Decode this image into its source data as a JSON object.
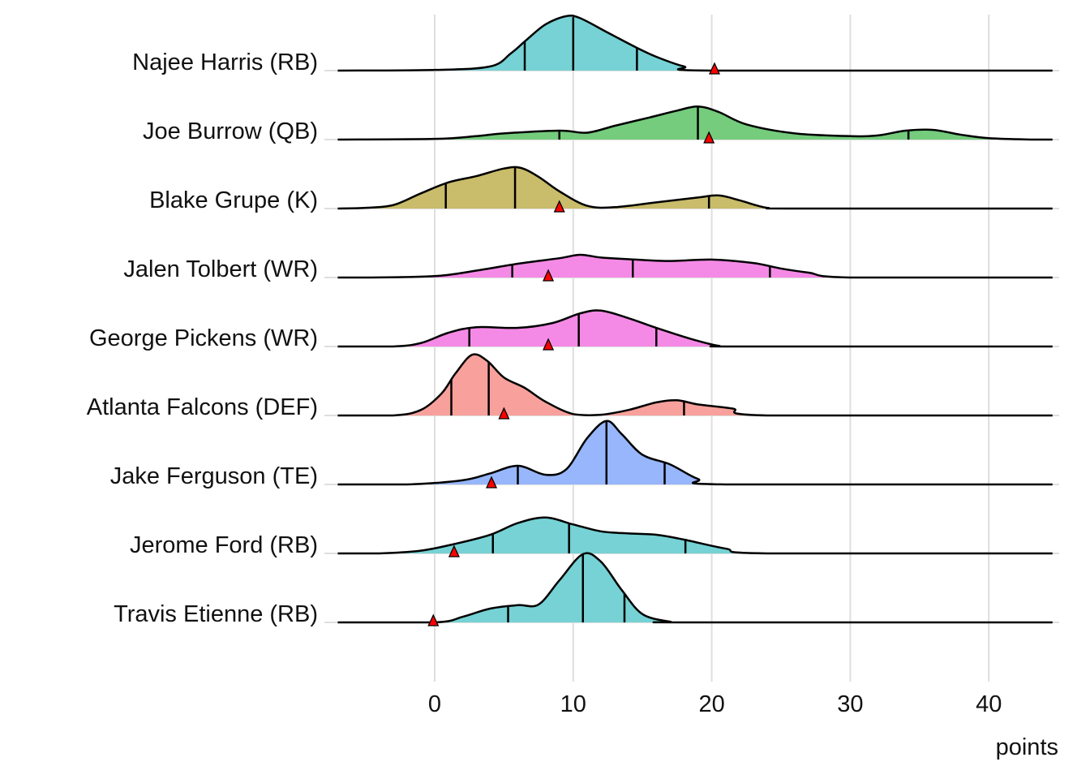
{
  "chart_data": {
    "type": "ridgeline",
    "xlabel": "points",
    "xlim": [
      -7,
      44.6
    ],
    "xticks": [
      0,
      10,
      20,
      30,
      40
    ],
    "grid": true,
    "series": [
      {
        "name": "Najee Harris (RB)",
        "color": "#76D2D4",
        "quantiles": [
          6.5,
          10,
          14.6
        ],
        "marker": 20.2,
        "density": [
          [
            -7,
            0
          ],
          [
            0,
            0.01
          ],
          [
            4,
            0.06
          ],
          [
            5.5,
            0.25
          ],
          [
            6.6,
            0.44
          ],
          [
            8,
            0.67
          ],
          [
            9.5,
            0.79
          ],
          [
            10.5,
            0.76
          ],
          [
            12.5,
            0.55
          ],
          [
            14.5,
            0.34
          ],
          [
            16,
            0.2
          ],
          [
            18,
            0.06
          ],
          [
            20,
            0
          ],
          [
            44.6,
            0
          ]
        ]
      },
      {
        "name": "Joe Burrow (QB)",
        "color": "#74CC7C",
        "quantiles": [
          9,
          19,
          34.2
        ],
        "marker": 19.8,
        "density": [
          [
            -7,
            0
          ],
          [
            0,
            0.01
          ],
          [
            3,
            0.05
          ],
          [
            5,
            0.09
          ],
          [
            9,
            0.13
          ],
          [
            11,
            0.1
          ],
          [
            13,
            0.2
          ],
          [
            15.5,
            0.32
          ],
          [
            17.5,
            0.42
          ],
          [
            19,
            0.48
          ],
          [
            20.5,
            0.4
          ],
          [
            22.5,
            0.22
          ],
          [
            26,
            0.09
          ],
          [
            30,
            0.05
          ],
          [
            32,
            0.06
          ],
          [
            34,
            0.13
          ],
          [
            36,
            0.14
          ],
          [
            38,
            0.07
          ],
          [
            40,
            0.02
          ],
          [
            43,
            0
          ],
          [
            44.6,
            0
          ]
        ]
      },
      {
        "name": "Blake Grupe (K)",
        "color": "#C9BC6A",
        "quantiles": [
          0.8,
          5.8,
          19.8
        ],
        "marker": 9.0,
        "density": [
          [
            -7,
            0
          ],
          [
            -5,
            0.01
          ],
          [
            -3,
            0.05
          ],
          [
            -1,
            0.22
          ],
          [
            1,
            0.38
          ],
          [
            3,
            0.47
          ],
          [
            5,
            0.58
          ],
          [
            6.2,
            0.59
          ],
          [
            7.5,
            0.46
          ],
          [
            9,
            0.25
          ],
          [
            11,
            0.04
          ],
          [
            13,
            0.02
          ],
          [
            16,
            0.09
          ],
          [
            19,
            0.16
          ],
          [
            20.5,
            0.19
          ],
          [
            22,
            0.12
          ],
          [
            24,
            0.01
          ],
          [
            26,
            0
          ],
          [
            44.6,
            0
          ]
        ]
      },
      {
        "name": "Jalen Tolbert (WR)",
        "color": "#F58AE6",
        "quantiles": [
          5.6,
          14.3,
          24.2
        ],
        "marker": 8.2,
        "density": [
          [
            -7,
            0
          ],
          [
            -5,
            0
          ],
          [
            0,
            0.02
          ],
          [
            3,
            0.1
          ],
          [
            6,
            0.2
          ],
          [
            9,
            0.28
          ],
          [
            10.5,
            0.33
          ],
          [
            12,
            0.29
          ],
          [
            14.5,
            0.26
          ],
          [
            17,
            0.24
          ],
          [
            20,
            0.26
          ],
          [
            23,
            0.21
          ],
          [
            25,
            0.13
          ],
          [
            27,
            0.07
          ],
          [
            30,
            0
          ],
          [
            44.6,
            0
          ]
        ]
      },
      {
        "name": "George Pickens (WR)",
        "color": "#F58AE6",
        "quantiles": [
          2.5,
          10.4,
          16
        ],
        "marker": 8.2,
        "density": [
          [
            -7,
            0
          ],
          [
            -3,
            0
          ],
          [
            -1,
            0.05
          ],
          [
            1,
            0.2
          ],
          [
            3,
            0.28
          ],
          [
            6,
            0.27
          ],
          [
            8.5,
            0.34
          ],
          [
            10.5,
            0.48
          ],
          [
            12,
            0.52
          ],
          [
            14,
            0.41
          ],
          [
            16,
            0.27
          ],
          [
            18.5,
            0.11
          ],
          [
            20.5,
            0.01
          ],
          [
            22,
            0
          ],
          [
            44.6,
            0
          ]
        ]
      },
      {
        "name": "Atlanta Falcons (DEF)",
        "color": "#F8A19C",
        "quantiles": [
          1.2,
          3.9,
          18
        ],
        "marker": 5.0,
        "density": [
          [
            -7,
            0
          ],
          [
            -3,
            0
          ],
          [
            -1,
            0.08
          ],
          [
            0.5,
            0.32
          ],
          [
            1.5,
            0.61
          ],
          [
            2.7,
            0.88
          ],
          [
            3.8,
            0.79
          ],
          [
            5,
            0.55
          ],
          [
            6.5,
            0.4
          ],
          [
            8,
            0.2
          ],
          [
            10,
            0.02
          ],
          [
            12,
            0.01
          ],
          [
            14,
            0.08
          ],
          [
            16,
            0.19
          ],
          [
            17.5,
            0.22
          ],
          [
            19,
            0.16
          ],
          [
            21.5,
            0.1
          ],
          [
            24,
            0
          ],
          [
            44.6,
            0
          ]
        ]
      },
      {
        "name": "Jake Ferguson (TE)",
        "color": "#97B6FB",
        "quantiles": [
          6,
          12.4,
          16.6
        ],
        "marker": 4.1,
        "density": [
          [
            -7,
            0
          ],
          [
            -2,
            0
          ],
          [
            2,
            0.06
          ],
          [
            4,
            0.16
          ],
          [
            6,
            0.27
          ],
          [
            8,
            0.14
          ],
          [
            9.5,
            0.22
          ],
          [
            11,
            0.67
          ],
          [
            12.4,
            0.92
          ],
          [
            13.5,
            0.73
          ],
          [
            15,
            0.43
          ],
          [
            17,
            0.29
          ],
          [
            19,
            0.08
          ],
          [
            21,
            0
          ],
          [
            44.6,
            0
          ]
        ]
      },
      {
        "name": "Jerome Ford (RB)",
        "color": "#76D2D4",
        "quantiles": [
          4.2,
          9.7,
          18.1
        ],
        "marker": 1.4,
        "density": [
          [
            -7,
            0
          ],
          [
            -4,
            0
          ],
          [
            -1,
            0.04
          ],
          [
            1.5,
            0.14
          ],
          [
            4,
            0.27
          ],
          [
            6,
            0.44
          ],
          [
            8,
            0.52
          ],
          [
            10,
            0.42
          ],
          [
            12,
            0.32
          ],
          [
            14,
            0.29
          ],
          [
            16,
            0.27
          ],
          [
            18,
            0.2
          ],
          [
            21,
            0.07
          ],
          [
            24,
            0
          ],
          [
            44.6,
            0
          ]
        ]
      },
      {
        "name": "Travis Etienne (RB)",
        "color": "#76D2D4",
        "quantiles": [
          5.3,
          10.7,
          13.7
        ],
        "marker": -0.1,
        "density": [
          [
            -7,
            0
          ],
          [
            0,
            0
          ],
          [
            2,
            0.08
          ],
          [
            4,
            0.2
          ],
          [
            6,
            0.25
          ],
          [
            7.5,
            0.26
          ],
          [
            9,
            0.61
          ],
          [
            10.7,
            0.99
          ],
          [
            12,
            0.88
          ],
          [
            13.5,
            0.47
          ],
          [
            15,
            0.12
          ],
          [
            17,
            0.01
          ],
          [
            18,
            0
          ],
          [
            44.6,
            0
          ]
        ]
      }
    ]
  }
}
